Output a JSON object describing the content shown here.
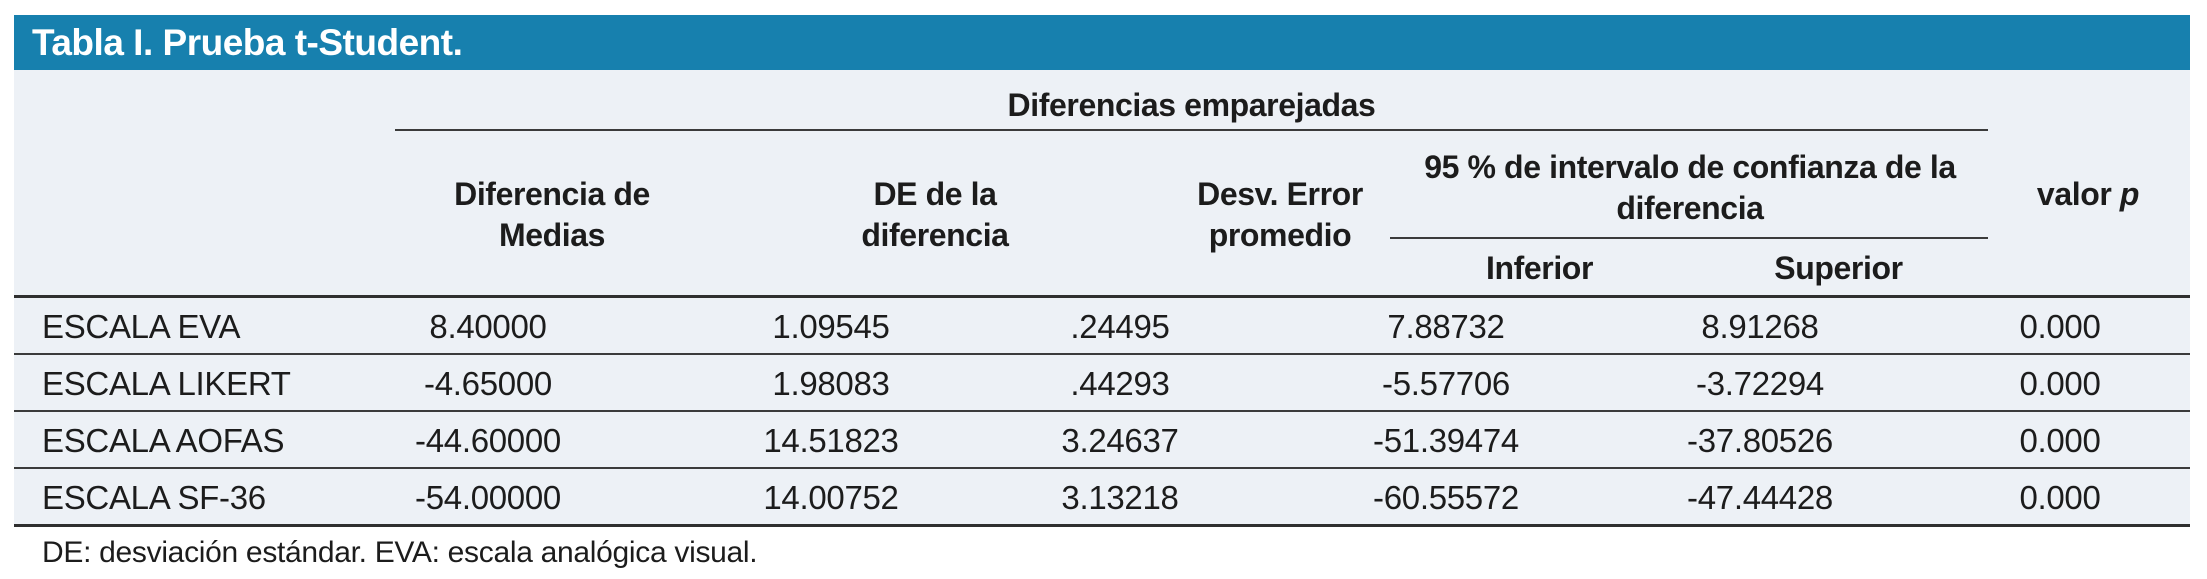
{
  "colors": {
    "title_bar": "#1780AE",
    "table_background": "#EDF1F6",
    "rule_line": "#3b3b3b",
    "title_text": "#ffffff",
    "body_text": "#1c1c1c"
  },
  "title": "Tabla I. Prueba t-Student.",
  "table": {
    "group_header": "Diferencias emparejadas",
    "columns": {
      "mean_diff": "Diferencia de Medias",
      "sd_diff": "DE de la diferencia",
      "se_mean": "Desv. Error promedio",
      "ci_group": "95 % de intervalo de confianza de la diferencia",
      "ci_lower": "Inferior",
      "ci_upper": "Superior",
      "p_prefix": "valor",
      "p_italic": "p"
    },
    "rows": [
      {
        "label": "ESCALA EVA",
        "cells": [
          "8.40000",
          "1.09545",
          ".24495",
          "7.88732",
          "8.91268",
          "0.000"
        ]
      },
      {
        "label": "ESCALA LIKERT",
        "cells": [
          "-4.65000",
          "1.98083",
          ".44293",
          "-5.57706",
          "-3.72294",
          "0.000"
        ]
      },
      {
        "label": "ESCALA AOFAS",
        "cells": [
          "-44.60000",
          "14.51823",
          "3.24637",
          "-51.39474",
          "-37.80526",
          "0.000"
        ]
      },
      {
        "label": "ESCALA SF-36",
        "cells": [
          "-54.00000",
          "14.00752",
          "3.13218",
          "-60.55572",
          "-47.44428",
          "0.000"
        ]
      }
    ],
    "footnote": "DE: desviación estándar. EVA: escala analógica visual."
  }
}
